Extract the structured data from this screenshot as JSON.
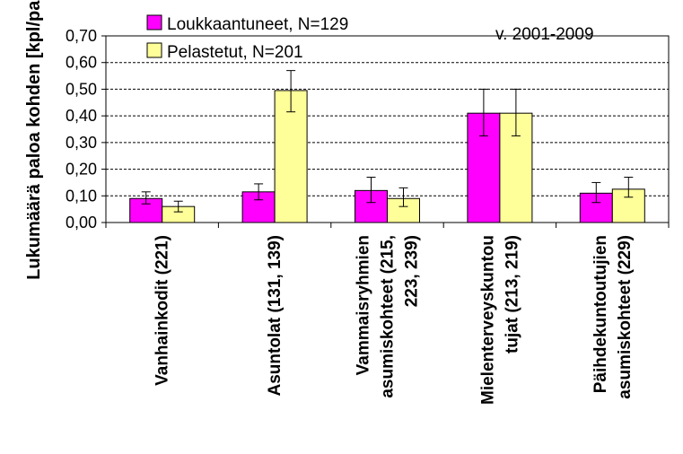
{
  "chart_data": {
    "type": "bar",
    "ylabel": "Lukumäärä paloa kohden [kpl/palo]",
    "annotation": "v. 2001-2009",
    "ylim": [
      0,
      0.7
    ],
    "yticks": [
      "0,00",
      "0,10",
      "0,20",
      "0,30",
      "0,40",
      "0,50",
      "0,60",
      "0,70"
    ],
    "grid": "horizontal dashed",
    "legend_position": "top-left",
    "categories": [
      [
        "Vanhainkodit (221)"
      ],
      [
        "Asuntolat (131, 139)"
      ],
      [
        "Vammaisryhmien",
        "asumiskohteet (215,",
        "223, 239)"
      ],
      [
        "Mielenterveyskuntou",
        "tujat (213, 219)"
      ],
      [
        "Päihdekuntoutujien",
        "asumiskohteet (229)"
      ]
    ],
    "series": [
      {
        "name": "Loukkaantuneet, N=129",
        "color": "#ff00ff",
        "values": [
          0.09,
          0.115,
          0.12,
          0.41,
          0.11
        ],
        "error": [
          [
            0.07,
            0.115
          ],
          [
            0.085,
            0.145
          ],
          [
            0.075,
            0.17
          ],
          [
            0.325,
            0.5
          ],
          [
            0.075,
            0.15
          ]
        ]
      },
      {
        "name": "Pelastetut, N=201",
        "color": "#ffff99",
        "values": [
          0.06,
          0.495,
          0.09,
          0.41,
          0.125
        ],
        "error": [
          [
            0.04,
            0.08
          ],
          [
            0.415,
            0.57
          ],
          [
            0.06,
            0.13
          ],
          [
            0.325,
            0.5
          ],
          [
            0.095,
            0.17
          ]
        ]
      }
    ]
  }
}
